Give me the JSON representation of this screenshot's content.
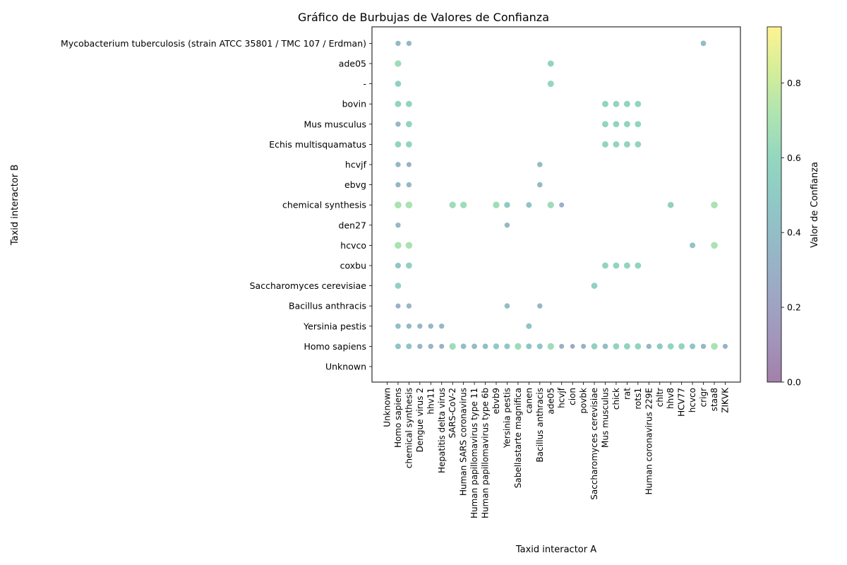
{
  "chart_data": {
    "type": "scatter",
    "title": "Gráfico de Burbujas de Valores de Confianza",
    "xlabel": "Taxid interactor A",
    "ylabel": "Taxid interactor B",
    "x_categories": [
      "Unknown",
      "Homo sapiens",
      "chemical synthesis",
      "Dengue virus 2",
      "hhv11",
      "Hepatitis delta virus",
      "SARS-CoV-2",
      "Human SARS coronavirus",
      "Human papillomavirus type 11",
      "Human papillomavirus type 6b",
      "ebvb9",
      "Yersinia pestis",
      "Sabellastarte magnifica",
      "canen",
      "Bacillus anthracis",
      "ade05",
      "hcvjf",
      "cion",
      "povbk",
      "Saccharomyces cerevisiae",
      "Mus musculus",
      "chick",
      "rat",
      "rots1",
      "Human coronavirus 229E",
      "chltr",
      "hhv8",
      "HCV77",
      "hcvco",
      "crigr",
      "staa8",
      "ZIKVK"
    ],
    "x_tick_labels": [
      "Unknown",
      "Homo sapiens",
      "chemical synthesis",
      "Dengue virus 2",
      "hhv11",
      "Hepatitis delta virus",
      "SARS-CoV-2",
      "Human SARS coronavirus",
      "Human papillomavirus type 11",
      "Human papillomavirus type 6b",
      "ebvb9",
      "Yersinia pestis",
      "Sabellastarte magnifica",
      "canen",
      "Bacillus anthracis",
      "ade05",
      "hcvjf",
      "cion",
      "povbk",
      "Saccharomyces cerevisiae",
      "Mus musculus",
      "chick",
      "rat",
      "rots1",
      "Human coronavirus 229E",
      "chltr",
      "hhv8",
      "HCV77",
      "hcvco",
      "crigr",
      "staa8",
      "ZIKVK"
    ],
    "y_categories": [
      "Unknown",
      "Homo sapiens",
      "Yersinia pestis",
      "Bacillus anthracis",
      "Saccharomyces cerevisiae",
      "coxbu",
      "hcvco",
      "den27",
      "chemical synthesis",
      "ebvg",
      "hcvjf",
      "Echis multisquamatus",
      "Mus musculus",
      "bovin",
      "-",
      "ade05",
      "Mycobacterium tuberculosis (strain ATCC 35801 / TMC 107 / Erdman)"
    ],
    "colorbar": {
      "label": "Valor de Confianza",
      "range": [
        0,
        0.95
      ],
      "ticks": [
        0.0,
        0.2,
        0.4,
        0.6,
        0.8
      ],
      "tick_labels": [
        "0.0",
        "0.2",
        "0.4",
        "0.6",
        "0.8"
      ],
      "colormap": "viridis",
      "alpha": 0.5
    },
    "points": [
      {
        "x": "Homo sapiens",
        "y": "Mycobacterium tuberculosis (strain ATCC 35801 / TMC 107 / Erdman)",
        "v": 0.35
      },
      {
        "x": "chemical synthesis",
        "y": "Mycobacterium tuberculosis (strain ATCC 35801 / TMC 107 / Erdman)",
        "v": 0.35
      },
      {
        "x": "crigr",
        "y": "Mycobacterium tuberculosis (strain ATCC 35801 / TMC 107 / Erdman)",
        "v": 0.4
      },
      {
        "x": "Homo sapiens",
        "y": "ade05",
        "v": 0.65
      },
      {
        "x": "ade05",
        "y": "ade05",
        "v": 0.58
      },
      {
        "x": "Homo sapiens",
        "y": "-",
        "v": 0.55
      },
      {
        "x": "ade05",
        "y": "-",
        "v": 0.6
      },
      {
        "x": "Homo sapiens",
        "y": "bovin",
        "v": 0.58
      },
      {
        "x": "chemical synthesis",
        "y": "bovin",
        "v": 0.58
      },
      {
        "x": "Mus musculus",
        "y": "bovin",
        "v": 0.58
      },
      {
        "x": "chick",
        "y": "bovin",
        "v": 0.58
      },
      {
        "x": "rat",
        "y": "bovin",
        "v": 0.58
      },
      {
        "x": "rots1",
        "y": "bovin",
        "v": 0.58
      },
      {
        "x": "Homo sapiens",
        "y": "Mus musculus",
        "v": 0.35
      },
      {
        "x": "chemical synthesis",
        "y": "Mus musculus",
        "v": 0.58
      },
      {
        "x": "Mus musculus",
        "y": "Mus musculus",
        "v": 0.58
      },
      {
        "x": "chick",
        "y": "Mus musculus",
        "v": 0.58
      },
      {
        "x": "rat",
        "y": "Mus musculus",
        "v": 0.58
      },
      {
        "x": "rots1",
        "y": "Mus musculus",
        "v": 0.58
      },
      {
        "x": "Homo sapiens",
        "y": "Echis multisquamatus",
        "v": 0.58
      },
      {
        "x": "chemical synthesis",
        "y": "Echis multisquamatus",
        "v": 0.58
      },
      {
        "x": "Mus musculus",
        "y": "Echis multisquamatus",
        "v": 0.58
      },
      {
        "x": "chick",
        "y": "Echis multisquamatus",
        "v": 0.58
      },
      {
        "x": "rat",
        "y": "Echis multisquamatus",
        "v": 0.58
      },
      {
        "x": "rots1",
        "y": "Echis multisquamatus",
        "v": 0.58
      },
      {
        "x": "Homo sapiens",
        "y": "hcvjf",
        "v": 0.35
      },
      {
        "x": "chemical synthesis",
        "y": "hcvjf",
        "v": 0.3
      },
      {
        "x": "Bacillus anthracis",
        "y": "hcvjf",
        "v": 0.38
      },
      {
        "x": "Homo sapiens",
        "y": "ebvg",
        "v": 0.35
      },
      {
        "x": "chemical synthesis",
        "y": "ebvg",
        "v": 0.35
      },
      {
        "x": "Bacillus anthracis",
        "y": "ebvg",
        "v": 0.38
      },
      {
        "x": "Homo sapiens",
        "y": "chemical synthesis",
        "v": 0.7
      },
      {
        "x": "chemical synthesis",
        "y": "chemical synthesis",
        "v": 0.7
      },
      {
        "x": "SARS-CoV-2",
        "y": "chemical synthesis",
        "v": 0.65
      },
      {
        "x": "Human SARS coronavirus",
        "y": "chemical synthesis",
        "v": 0.65
      },
      {
        "x": "ebvb9",
        "y": "chemical synthesis",
        "v": 0.65
      },
      {
        "x": "Yersinia pestis",
        "y": "chemical synthesis",
        "v": 0.5
      },
      {
        "x": "canen",
        "y": "chemical synthesis",
        "v": 0.45
      },
      {
        "x": "ade05",
        "y": "chemical synthesis",
        "v": 0.65
      },
      {
        "x": "hcvjf",
        "y": "chemical synthesis",
        "v": 0.3
      },
      {
        "x": "hhv8",
        "y": "chemical synthesis",
        "v": 0.55
      },
      {
        "x": "staa8",
        "y": "chemical synthesis",
        "v": 0.7
      },
      {
        "x": "Homo sapiens",
        "y": "den27",
        "v": 0.35
      },
      {
        "x": "Yersinia pestis",
        "y": "den27",
        "v": 0.35
      },
      {
        "x": "Homo sapiens",
        "y": "hcvco",
        "v": 0.7
      },
      {
        "x": "chemical synthesis",
        "y": "hcvco",
        "v": 0.7
      },
      {
        "x": "hcvco",
        "y": "hcvco",
        "v": 0.45
      },
      {
        "x": "staa8",
        "y": "hcvco",
        "v": 0.7
      },
      {
        "x": "Homo sapiens",
        "y": "coxbu",
        "v": 0.45
      },
      {
        "x": "chemical synthesis",
        "y": "coxbu",
        "v": 0.55
      },
      {
        "x": "Mus musculus",
        "y": "coxbu",
        "v": 0.58
      },
      {
        "x": "chick",
        "y": "coxbu",
        "v": 0.58
      },
      {
        "x": "rat",
        "y": "coxbu",
        "v": 0.58
      },
      {
        "x": "rots1",
        "y": "coxbu",
        "v": 0.58
      },
      {
        "x": "Homo sapiens",
        "y": "Saccharomyces cerevisiae",
        "v": 0.55
      },
      {
        "x": "Saccharomyces cerevisiae",
        "y": "Saccharomyces cerevisiae",
        "v": 0.55
      },
      {
        "x": "Homo sapiens",
        "y": "Bacillus anthracis",
        "v": 0.3
      },
      {
        "x": "chemical synthesis",
        "y": "Bacillus anthracis",
        "v": 0.35
      },
      {
        "x": "Yersinia pestis",
        "y": "Bacillus anthracis",
        "v": 0.4
      },
      {
        "x": "Bacillus anthracis",
        "y": "Bacillus anthracis",
        "v": 0.35
      },
      {
        "x": "Homo sapiens",
        "y": "Yersinia pestis",
        "v": 0.4
      },
      {
        "x": "chemical synthesis",
        "y": "Yersinia pestis",
        "v": 0.35
      },
      {
        "x": "Dengue virus 2",
        "y": "Yersinia pestis",
        "v": 0.35
      },
      {
        "x": "hhv11",
        "y": "Yersinia pestis",
        "v": 0.35
      },
      {
        "x": "Hepatitis delta virus",
        "y": "Yersinia pestis",
        "v": 0.35
      },
      {
        "x": "canen",
        "y": "Yersinia pestis",
        "v": 0.45
      },
      {
        "x": "Homo sapiens",
        "y": "Homo sapiens",
        "v": 0.45
      },
      {
        "x": "chemical synthesis",
        "y": "Homo sapiens",
        "v": 0.45
      },
      {
        "x": "Dengue virus 2",
        "y": "Homo sapiens",
        "v": 0.35
      },
      {
        "x": "hhv11",
        "y": "Homo sapiens",
        "v": 0.35
      },
      {
        "x": "Hepatitis delta virus",
        "y": "Homo sapiens",
        "v": 0.3
      },
      {
        "x": "SARS-CoV-2",
        "y": "Homo sapiens",
        "v": 0.65
      },
      {
        "x": "Human SARS coronavirus",
        "y": "Homo sapiens",
        "v": 0.4
      },
      {
        "x": "Human papillomavirus type 11",
        "y": "Homo sapiens",
        "v": 0.4
      },
      {
        "x": "Human papillomavirus type 6b",
        "y": "Homo sapiens",
        "v": 0.4
      },
      {
        "x": "ebvb9",
        "y": "Homo sapiens",
        "v": 0.5
      },
      {
        "x": "Yersinia pestis",
        "y": "Homo sapiens",
        "v": 0.45
      },
      {
        "x": "Sabellastarte magnifica",
        "y": "Homo sapiens",
        "v": 0.65
      },
      {
        "x": "canen",
        "y": "Homo sapiens",
        "v": 0.45
      },
      {
        "x": "Bacillus anthracis",
        "y": "Homo sapiens",
        "v": 0.45
      },
      {
        "x": "ade05",
        "y": "Homo sapiens",
        "v": 0.65
      },
      {
        "x": "hcvjf",
        "y": "Homo sapiens",
        "v": 0.3
      },
      {
        "x": "cion",
        "y": "Homo sapiens",
        "v": 0.25
      },
      {
        "x": "povbk",
        "y": "Homo sapiens",
        "v": 0.3
      },
      {
        "x": "Saccharomyces cerevisiae",
        "y": "Homo sapiens",
        "v": 0.55
      },
      {
        "x": "Mus musculus",
        "y": "Homo sapiens",
        "v": 0.4
      },
      {
        "x": "chick",
        "y": "Homo sapiens",
        "v": 0.58
      },
      {
        "x": "rat",
        "y": "Homo sapiens",
        "v": 0.58
      },
      {
        "x": "rots1",
        "y": "Homo sapiens",
        "v": 0.58
      },
      {
        "x": "Human coronavirus 229E",
        "y": "Homo sapiens",
        "v": 0.35
      },
      {
        "x": "chltr",
        "y": "Homo sapiens",
        "v": 0.5
      },
      {
        "x": "hhv8",
        "y": "Homo sapiens",
        "v": 0.58
      },
      {
        "x": "HCV77",
        "y": "Homo sapiens",
        "v": 0.58
      },
      {
        "x": "hcvco",
        "y": "Homo sapiens",
        "v": 0.45
      },
      {
        "x": "crigr",
        "y": "Homo sapiens",
        "v": 0.35
      },
      {
        "x": "staa8",
        "y": "Homo sapiens",
        "v": 0.7
      },
      {
        "x": "ZIKVK",
        "y": "Homo sapiens",
        "v": 0.3
      }
    ]
  }
}
